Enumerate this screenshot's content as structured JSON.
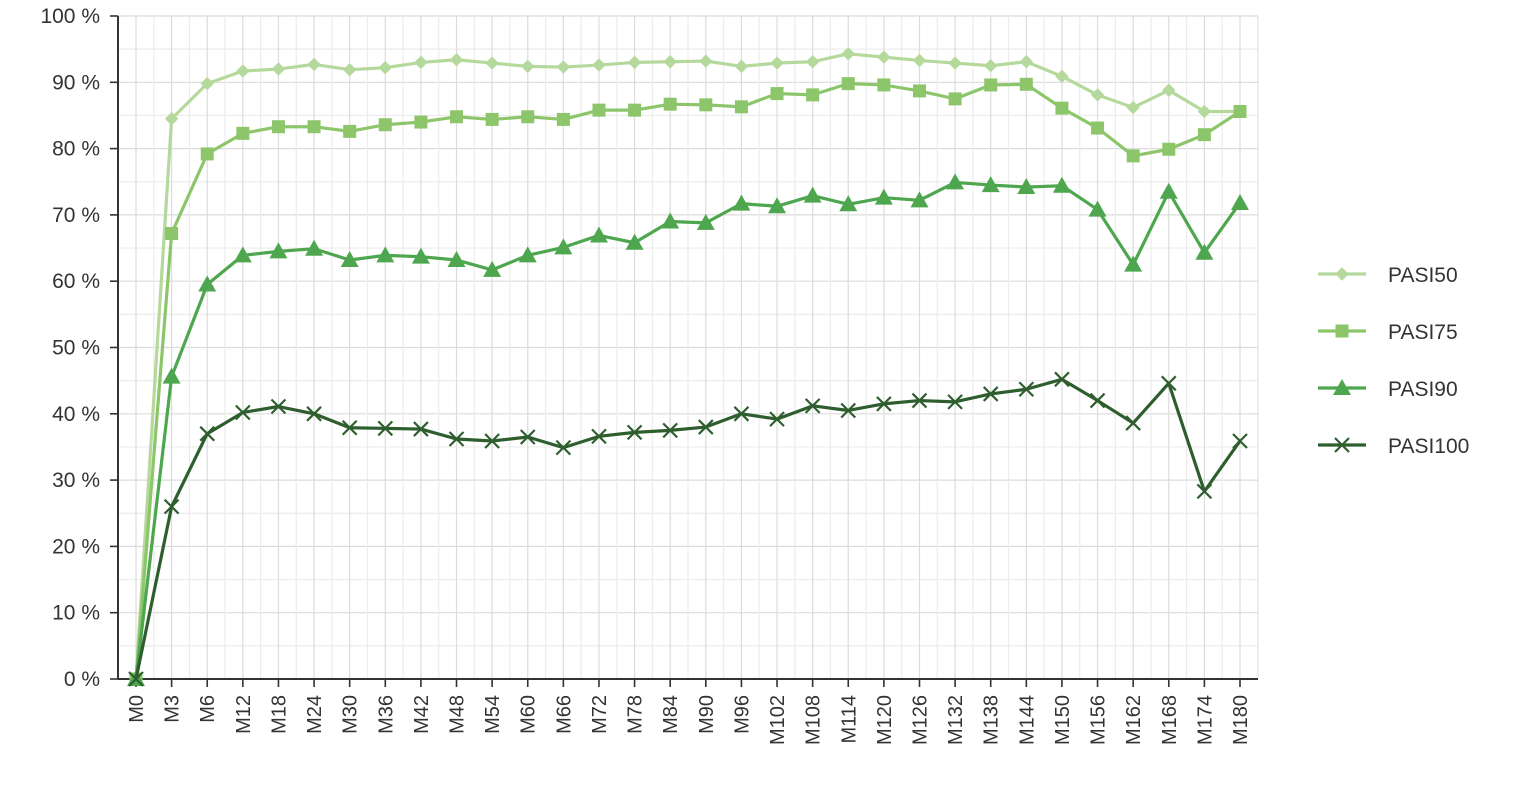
{
  "chart_data": {
    "type": "line",
    "title": "",
    "xlabel": "",
    "ylabel": "",
    "ylim": [
      0,
      100
    ],
    "ytick_values": [
      0,
      10,
      20,
      30,
      40,
      50,
      60,
      70,
      80,
      90,
      100
    ],
    "ytick_labels": [
      "0 %",
      "10 %",
      "20 %",
      "30 %",
      "40 %",
      "50 %",
      "60 %",
      "70 %",
      "80 %",
      "90 %",
      "100 %"
    ],
    "grid": "on",
    "legend_position": "right",
    "categories": [
      "M0",
      "M3",
      "M6",
      "M12",
      "M18",
      "M24",
      "M30",
      "M36",
      "M42",
      "M48",
      "M54",
      "M60",
      "M66",
      "M72",
      "M78",
      "M84",
      "M90",
      "M96",
      "M102",
      "M108",
      "M114",
      "M120",
      "M126",
      "M132",
      "M138",
      "M144",
      "M150",
      "M156",
      "M162",
      "M168",
      "M174",
      "M180"
    ],
    "series": [
      {
        "name": "PASI50",
        "color": "#b5d99c",
        "marker": "diamond",
        "values": [
          0,
          84.5,
          89.8,
          91.7,
          92,
          92.7,
          91.9,
          92.2,
          93,
          93.4,
          92.9,
          92.4,
          92.3,
          92.6,
          93,
          93.1,
          93.2,
          92.4,
          92.9,
          93.1,
          94.3,
          93.8,
          93.3,
          92.9,
          92.5,
          93.1,
          90.9,
          88.1,
          86.2,
          88.8,
          85.6,
          85.6
        ]
      },
      {
        "name": "PASI75",
        "color": "#8dc66a",
        "marker": "square",
        "values": [
          0,
          67.2,
          79.2,
          82.3,
          83.3,
          83.3,
          82.6,
          83.6,
          84,
          84.8,
          84.4,
          84.8,
          84.4,
          85.8,
          85.8,
          86.7,
          86.6,
          86.3,
          88.3,
          88.1,
          89.8,
          89.6,
          88.7,
          87.5,
          89.6,
          89.7,
          86.1,
          83.1,
          78.9,
          79.9,
          82.1,
          85.6
        ]
      },
      {
        "name": "PASI90",
        "color": "#4ea64f",
        "marker": "triangle",
        "values": [
          0,
          45.6,
          59.5,
          63.9,
          64.5,
          64.9,
          63.2,
          63.9,
          63.7,
          63.2,
          61.7,
          63.9,
          65.1,
          66.9,
          65.8,
          69,
          68.8,
          71.7,
          71.3,
          72.9,
          71.6,
          72.6,
          72.2,
          74.9,
          74.5,
          74.2,
          74.4,
          70.8,
          62.5,
          73.5,
          64.3,
          71.8
        ]
      },
      {
        "name": "PASI100",
        "color": "#2f5e2e",
        "marker": "x",
        "values": [
          0,
          26,
          37,
          40.2,
          41.1,
          40,
          37.9,
          37.8,
          37.7,
          36.2,
          35.9,
          36.5,
          34.9,
          36.6,
          37.2,
          37.5,
          38,
          40,
          39.2,
          41.2,
          40.5,
          41.5,
          42,
          41.8,
          43,
          43.7,
          45.2,
          42,
          38.6,
          44.6,
          28.3,
          35.9
        ]
      }
    ]
  }
}
